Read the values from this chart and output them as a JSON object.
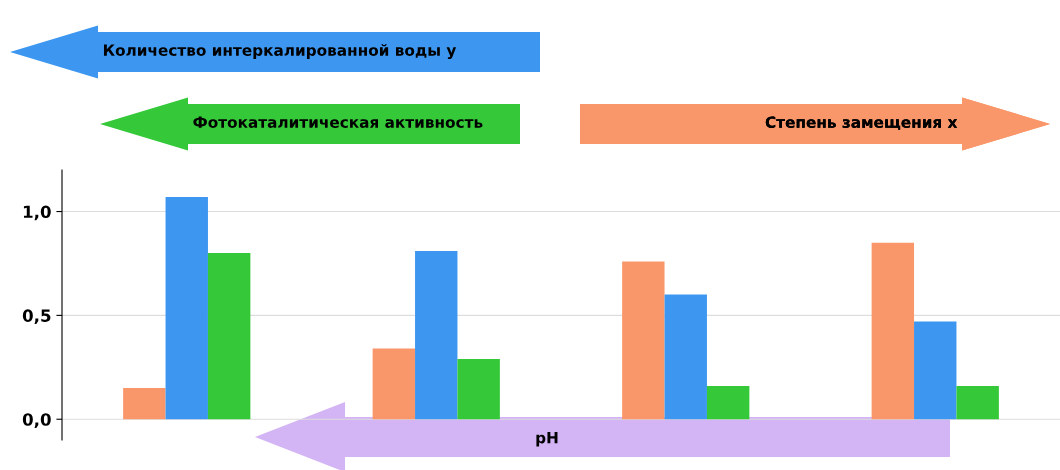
{
  "chart_data": {
    "type": "bar",
    "xlabel": "pH",
    "categories": [
      null,
      null,
      null,
      null
    ],
    "series": [
      {
        "name": "Степень замещения x",
        "color": "#f9976a",
        "values": [
          0.15,
          0.34,
          0.76,
          0.85
        ]
      },
      {
        "name": "Количество интеркалированной воды y",
        "color": "#3d97f0",
        "values": [
          1.07,
          0.81,
          0.6,
          0.47
        ]
      },
      {
        "name": "Фотокаталитическая активность",
        "color": "#35c93a",
        "values": [
          0.8,
          0.29,
          0.16,
          0.16
        ]
      }
    ],
    "ylim": [
      -0.1,
      1.2
    ],
    "yticks": [
      {
        "value": 0,
        "label": "0,0"
      },
      {
        "value": 0.5,
        "label": "0,5"
      },
      {
        "value": 1,
        "label": "1,0"
      }
    ],
    "grid": "y",
    "legend": false
  }
}
